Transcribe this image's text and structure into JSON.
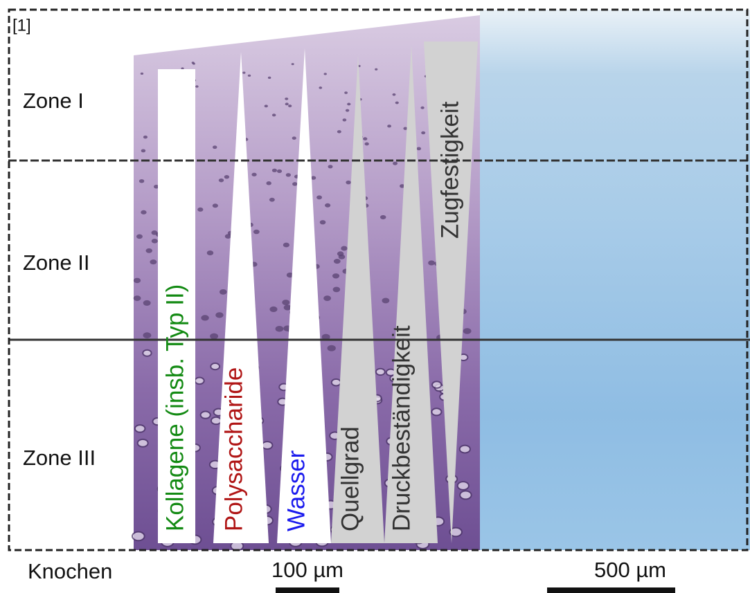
{
  "figure_ref": "[1]",
  "zones": [
    "Zone I",
    "Zone II",
    "Zone III"
  ],
  "bone_label": "Knochen",
  "scale_bars": [
    "100 µm",
    "500 µm"
  ],
  "properties": [
    "Kollagene (insb. Typ II)",
    "Polysaccharide",
    "Wasser",
    "Quellgrad",
    "Druckbeständigkeit",
    "Zugfestigkeit"
  ]
}
